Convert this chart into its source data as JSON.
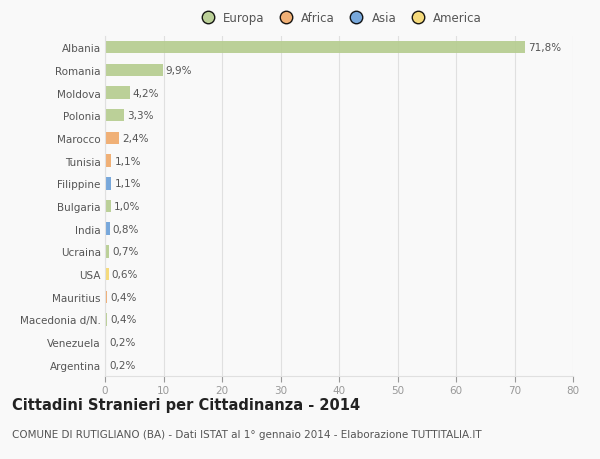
{
  "countries": [
    "Albania",
    "Romania",
    "Moldova",
    "Polonia",
    "Marocco",
    "Tunisia",
    "Filippine",
    "Bulgaria",
    "India",
    "Ucraina",
    "USA",
    "Mauritius",
    "Macedonia d/N.",
    "Venezuela",
    "Argentina"
  ],
  "values": [
    71.8,
    9.9,
    4.2,
    3.3,
    2.4,
    1.1,
    1.1,
    1.0,
    0.8,
    0.7,
    0.6,
    0.4,
    0.4,
    0.2,
    0.2
  ],
  "labels": [
    "71,8%",
    "9,9%",
    "4,2%",
    "3,3%",
    "2,4%",
    "1,1%",
    "1,1%",
    "1,0%",
    "0,8%",
    "0,7%",
    "0,6%",
    "0,4%",
    "0,4%",
    "0,2%",
    "0,2%"
  ],
  "continents": [
    "Europa",
    "Europa",
    "Europa",
    "Europa",
    "Africa",
    "Africa",
    "Asia",
    "Europa",
    "Asia",
    "Europa",
    "America",
    "Africa",
    "Europa",
    "America",
    "America"
  ],
  "continent_colors": {
    "Europa": "#b5cc8e",
    "Africa": "#f0a868",
    "Asia": "#6a9fd8",
    "America": "#f5d76e"
  },
  "legend_order": [
    "Europa",
    "Africa",
    "Asia",
    "America"
  ],
  "xlim": [
    0,
    80
  ],
  "xticks": [
    0,
    10,
    20,
    30,
    40,
    50,
    60,
    70,
    80
  ],
  "title": "Cittadini Stranieri per Cittadinanza - 2014",
  "subtitle": "COMUNE DI RUTIGLIANO (BA) - Dati ISTAT al 1° gennaio 2014 - Elaborazione TUTTITALIA.IT",
  "background_color": "#f9f9f9",
  "grid_color": "#e0e0e0",
  "bar_height": 0.55,
  "label_fontsize": 7.5,
  "tick_fontsize": 7.5,
  "title_fontsize": 10.5,
  "subtitle_fontsize": 7.5,
  "text_color": "#555555"
}
